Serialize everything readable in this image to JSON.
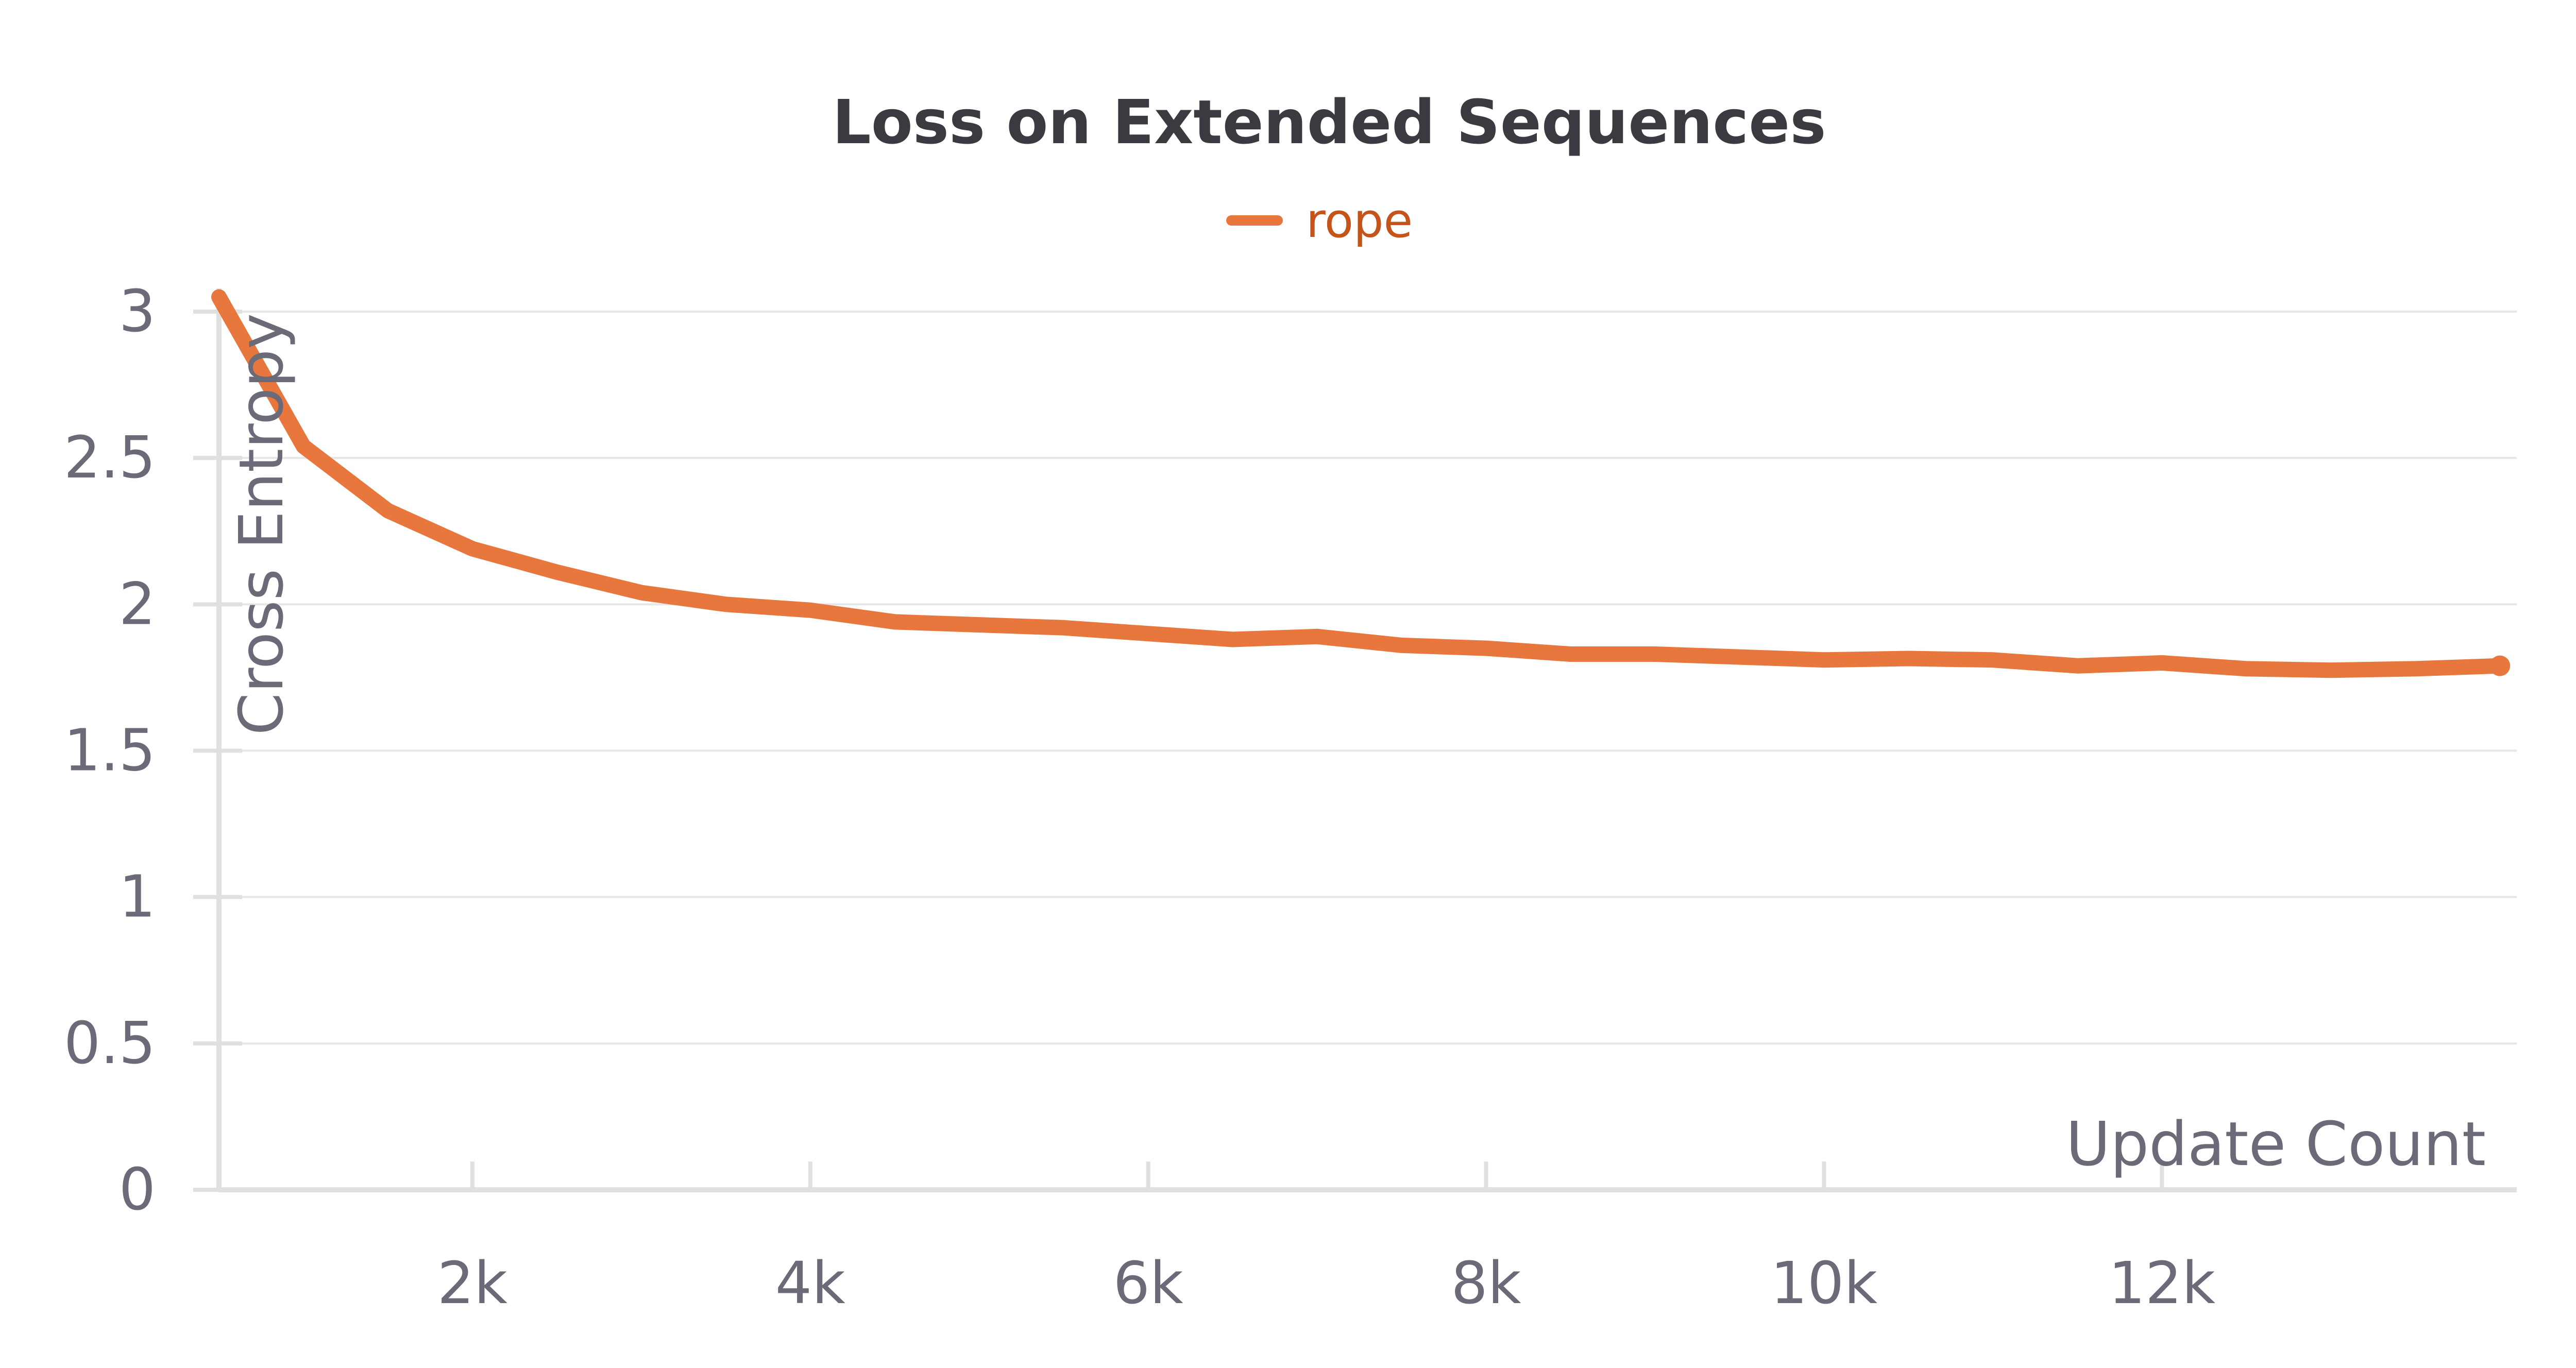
{
  "chart_data": {
    "type": "line",
    "title": "Loss on Extended Sequences",
    "xlabel": "Update Count",
    "ylabel": "Cross Entropy",
    "xlim": [
      500,
      14100
    ],
    "ylim": [
      0,
      3
    ],
    "grid": true,
    "legend_placement": "top-center",
    "x_ticks": [
      {
        "value": 2000,
        "label": "2k"
      },
      {
        "value": 4000,
        "label": "4k"
      },
      {
        "value": 6000,
        "label": "6k"
      },
      {
        "value": 8000,
        "label": "8k"
      },
      {
        "value": 10000,
        "label": "10k"
      },
      {
        "value": 12000,
        "label": "12k"
      }
    ],
    "y_ticks": [
      {
        "value": 0,
        "label": "0"
      },
      {
        "value": 0.5,
        "label": "0.5"
      },
      {
        "value": 1,
        "label": "1"
      },
      {
        "value": 1.5,
        "label": "1.5"
      },
      {
        "value": 2,
        "label": "2"
      },
      {
        "value": 2.5,
        "label": "2.5"
      },
      {
        "value": 3,
        "label": "3"
      }
    ],
    "series": [
      {
        "name": "rope",
        "color": "#e8773d",
        "x": [
          500,
          1000,
          1500,
          2000,
          2500,
          3000,
          3500,
          4000,
          4500,
          5000,
          5500,
          6000,
          6500,
          7000,
          7500,
          8000,
          8500,
          9000,
          9500,
          10000,
          10500,
          11000,
          11500,
          12000,
          12500,
          13000,
          13500,
          14000
        ],
        "y": [
          3.05,
          2.54,
          2.32,
          2.19,
          2.11,
          2.04,
          2.0,
          1.98,
          1.94,
          1.93,
          1.92,
          1.9,
          1.88,
          1.89,
          1.86,
          1.85,
          1.83,
          1.83,
          1.82,
          1.81,
          1.815,
          1.81,
          1.79,
          1.8,
          1.78,
          1.775,
          1.78,
          1.79
        ]
      }
    ]
  }
}
